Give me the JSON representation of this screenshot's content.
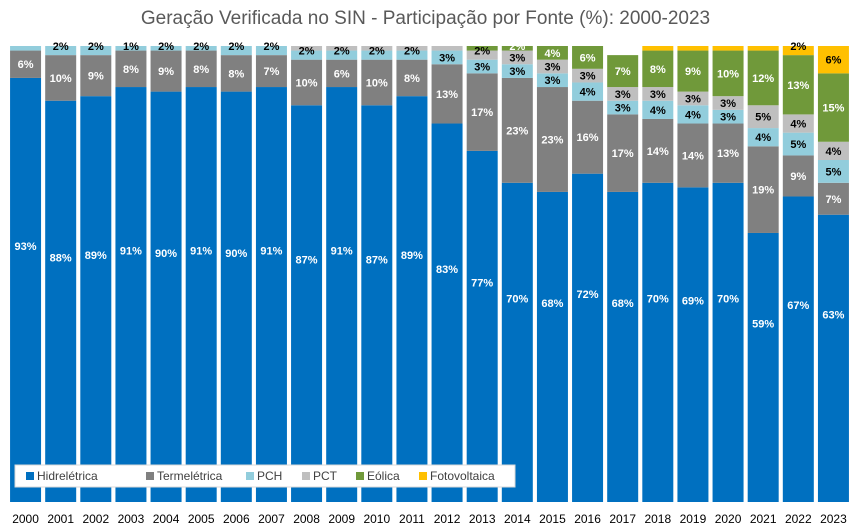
{
  "chart_data": {
    "type": "bar",
    "stacked": true,
    "title": "Geração Verificada no SIN - Participação por Fonte (%): 2000-2023",
    "xlabel": "",
    "ylabel": "",
    "ylim": [
      0,
      100
    ],
    "grid": false,
    "legend_position": "bottom-left",
    "categories": [
      "2000",
      "2001",
      "2002",
      "2003",
      "2004",
      "2005",
      "2006",
      "2007",
      "2008",
      "2009",
      "2010",
      "2011",
      "2012",
      "2013",
      "2014",
      "2015",
      "2016",
      "2017",
      "2018",
      "2019",
      "2020",
      "2021",
      "2022",
      "2023"
    ],
    "series": [
      {
        "name": "Hidrelétrica",
        "color": "#0070C0",
        "values": [
          93,
          88,
          89,
          91,
          90,
          91,
          90,
          91,
          87,
          91,
          87,
          89,
          83,
          77,
          70,
          68,
          72,
          68,
          70,
          69,
          70,
          59,
          67,
          63
        ],
        "labels": [
          "93%",
          "88%",
          "89%",
          "91%",
          "90%",
          "91%",
          "90%",
          "91%",
          "87%",
          "91%",
          "87%",
          "89%",
          "83%",
          "77%",
          "70%",
          "68%",
          "72%",
          "68%",
          "70%",
          "69%",
          "70%",
          "59%",
          "67%",
          "63%"
        ]
      },
      {
        "name": "Termelétrica",
        "color": "#808080",
        "values": [
          6,
          10,
          9,
          8,
          9,
          8,
          8,
          7,
          10,
          6,
          10,
          8,
          13,
          17,
          23,
          23,
          16,
          17,
          14,
          14,
          13,
          19,
          9,
          7
        ],
        "labels": [
          "6%",
          "10%",
          "9%",
          "8%",
          "9%",
          "8%",
          "8%",
          "7%",
          "10%",
          "6%",
          "10%",
          "8%",
          "13%",
          "17%",
          "23%",
          "23%",
          "16%",
          "17%",
          "14%",
          "14%",
          "13%",
          "19%",
          "9%",
          "7%"
        ]
      },
      {
        "name": "PCH",
        "color": "#92CDDC",
        "values": [
          1,
          2,
          2,
          1,
          2,
          2,
          2,
          2,
          2,
          2,
          2,
          2,
          3,
          3,
          3,
          3,
          4,
          3,
          4,
          4,
          3,
          4,
          5,
          5
        ],
        "labels": [
          "",
          "2%",
          "2%",
          "1%",
          "2%",
          "2%",
          "2%",
          "2%",
          "2%",
          "2%",
          "2%",
          "2%",
          "3%",
          "3%",
          "3%",
          "3%",
          "4%",
          "3%",
          "4%",
          "4%",
          "3%",
          "4%",
          "5%",
          "5%"
        ]
      },
      {
        "name": "PCT",
        "color": "#BFBFBF",
        "values": [
          0,
          0,
          0,
          0,
          0,
          0,
          0,
          0,
          1,
          1,
          1,
          1,
          1,
          2,
          3,
          3,
          3,
          3,
          3,
          3,
          3,
          5,
          4,
          4
        ],
        "labels": [
          "",
          "",
          "",
          "",
          "",
          "",
          "",
          "",
          "",
          "",
          "",
          "",
          "",
          "2%",
          "3%",
          "3%",
          "3%",
          "3%",
          "3%",
          "3%",
          "3%",
          "5%",
          "4%",
          "4%"
        ]
      },
      {
        "name": "Eólica",
        "color": "#70993A",
        "values": [
          0,
          0,
          0,
          0,
          0,
          0,
          0,
          0,
          0,
          0,
          0,
          0.5,
          0.6,
          1,
          2,
          4,
          6,
          7,
          8,
          9,
          10,
          12,
          13,
          15
        ],
        "labels": [
          "",
          "",
          "",
          "",
          "",
          "",
          "",
          "",
          "",
          "",
          "",
          "",
          "",
          "",
          "2%",
          "4%",
          "6%",
          "7%",
          "8%",
          "9%",
          "10%",
          "12%",
          "13%",
          "15%"
        ]
      },
      {
        "name": "Fotovoltaica",
        "color": "#FFC000",
        "values": [
          0,
          0,
          0,
          0,
          0,
          0,
          0,
          0,
          0,
          0,
          0,
          0,
          0,
          0,
          0,
          0,
          0,
          0,
          1,
          1,
          1,
          2,
          2,
          6
        ],
        "labels": [
          "",
          "",
          "",
          "",
          "",
          "",
          "",
          "",
          "",
          "",
          "",
          "",
          "",
          "",
          "",
          "",
          "",
          "",
          "",
          "",
          "",
          "",
          "2%",
          "6%"
        ]
      }
    ]
  }
}
